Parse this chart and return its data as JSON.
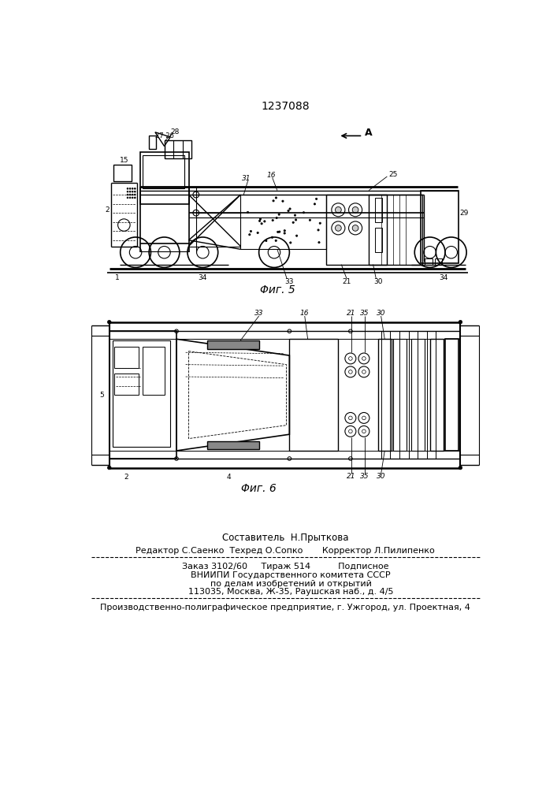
{
  "patent_number": "1237088",
  "fig5_caption": "Φиг. 5",
  "fig6_caption": "Φиг. 6",
  "footer_line1": "Составитель  Н.Прыткова",
  "footer_line2": "Редактор С.Саенко  Техред О.Сопко       Корректор Л.Пилипенко",
  "footer_line3": "Заказ 3102/60     Тираж 514          Подписное",
  "footer_line4": "    ВНИИПИ Государственного комитета СССР",
  "footer_line5": "    по делам изобретений и открытий",
  "footer_line6": "    113035, Москва, Ж-35, Раушская наб., д. 4/5",
  "footer_line7": "Производственно-полиграфическое предприятие, г. Ужгород, ул. Проектная, 4",
  "bg_color": "#ffffff",
  "line_color": "#000000",
  "text_color": "#000000"
}
